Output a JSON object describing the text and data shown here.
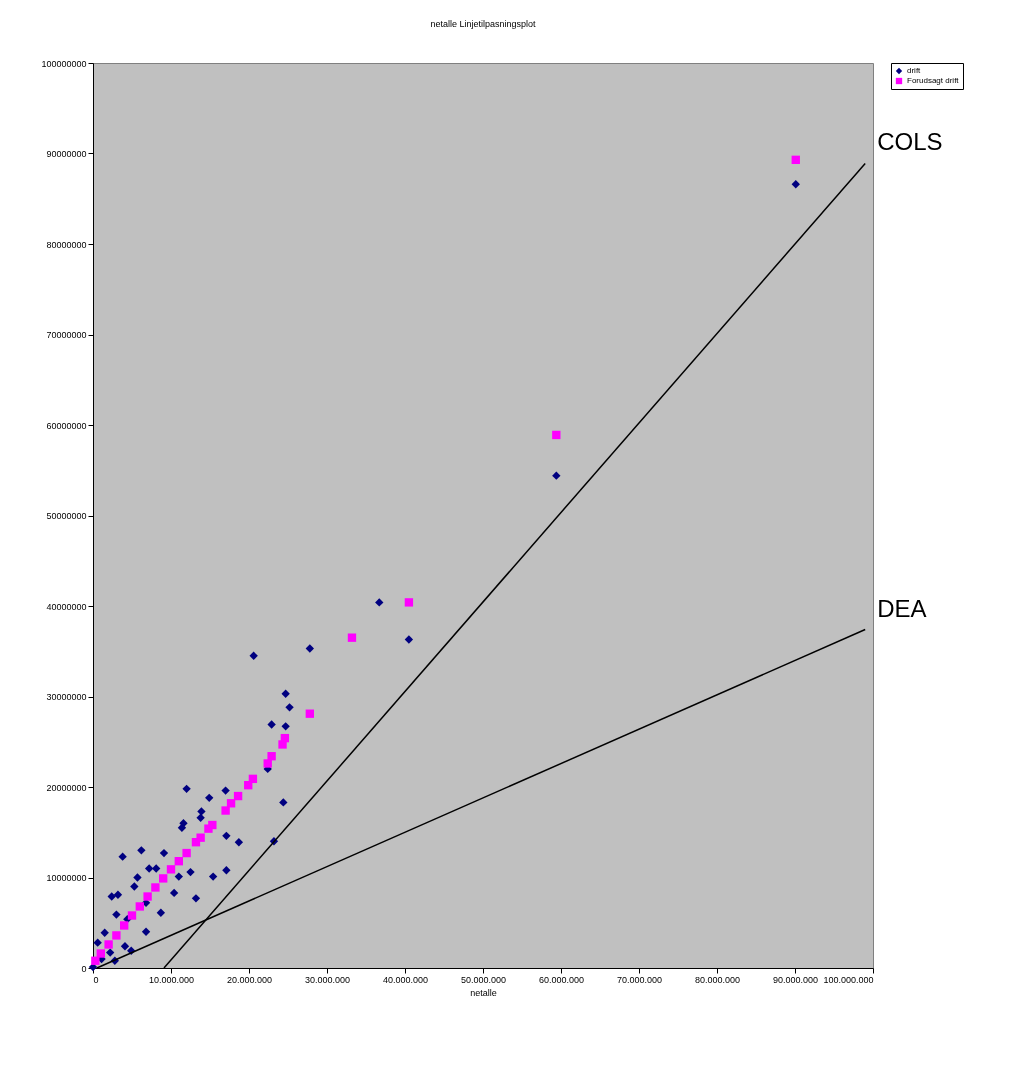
{
  "chart_data": {
    "type": "scatter",
    "title": "netalle Linjetilpasningsplot",
    "xlabel": "netalle",
    "xlim": [
      0,
      100000000.0
    ],
    "ylim": [
      0,
      100000000.0
    ],
    "xticks": [
      0,
      {
        "value": 10000000.0,
        "label": "10.000.000"
      },
      {
        "value": 20000000.0,
        "label": "20.000.000"
      },
      {
        "value": 30000000.0,
        "label": "30.000.000"
      },
      {
        "value": 40000000.0,
        "label": "40.000.000"
      },
      {
        "value": 50000000.0,
        "label": "50.000.000"
      },
      {
        "value": 60000000.0,
        "label": "60.000.000"
      },
      {
        "value": 70000000.0,
        "label": "70.000.000"
      },
      {
        "value": 80000000.0,
        "label": "80.000.000"
      },
      {
        "value": 90000000.0,
        "label": "90.000.000"
      },
      {
        "value": 100000000.0,
        "label": "100.000.000"
      }
    ],
    "yticks": [
      0,
      10000000,
      20000000,
      30000000,
      40000000,
      50000000,
      60000000,
      70000000,
      80000000,
      90000000,
      100000000
    ],
    "grid": false,
    "legend": "right",
    "series": [
      {
        "name": "drift",
        "color": "#000080",
        "marker": "diamond",
        "x": [
          90100000.0,
          59400000.0,
          36700000.0,
          40500000.0,
          20600000.0,
          27800000.0,
          24700000.0,
          25200000.0,
          22900000.0,
          24700000.0,
          22400000.0,
          24400000.0,
          23200000.0,
          17000000.0,
          14900000.0,
          13900000.0,
          13800000.0,
          12000000.0,
          17100000.0,
          18700000.0,
          11600000.0,
          17100000.0,
          15400000.0,
          12500000.0,
          6200000.0,
          3800000.0,
          11400000.0,
          9100000.0,
          7200000.0,
          8100000.0,
          11000000.0,
          13200000.0,
          10400000.0,
          8700000.0,
          3200000.0,
          2400000.0,
          5700000.0,
          5300000.0,
          6800000.0,
          3000000.0,
          4400000.0,
          6800000.0,
          3700000.0,
          1500000.0,
          4100000.0,
          4900000.0,
          2200000.0,
          600000.0,
          1100000.0,
          2800000.0,
          0
        ],
        "values": [
          86600000.0,
          54400000.0,
          40400000.0,
          36300000.0,
          34500000.0,
          35300000.0,
          30300000.0,
          28800000.0,
          26900000.0,
          26700000.0,
          22000000.0,
          18300000.0,
          14000000.0,
          19600000.0,
          18800000.0,
          17300000.0,
          16600000.0,
          19800000.0,
          14600000.0,
          13900000.0,
          16000000.0,
          10800000.0,
          10100000.0,
          10600000.0,
          13000000.0,
          12300000.0,
          15500000.0,
          12700000.0,
          11000000.0,
          11000000.0,
          10100000.0,
          7700000.0,
          8300000.0,
          6100000.0,
          8100000.0,
          7900000.0,
          10000000.0,
          9000000.0,
          7200000.0,
          5900000.0,
          5400000.0,
          4000000.0,
          null,
          3900000.0,
          2400000.0,
          1900000.0,
          1700000.0,
          2800000.0,
          1000000.0,
          800000.0,
          100000.0
        ]
      },
      {
        "name": "Forudsagt drift",
        "color": "#ff00ff",
        "marker": "square",
        "x": [
          90100000.0,
          59400000.0,
          40500000.0,
          33200000.0,
          27800000.0,
          24600000.0,
          24300000.0,
          22900000.0,
          22400000.0,
          20500000.0,
          19900000.0,
          18600000.0,
          17700000.0,
          17000000.0,
          15300000.0,
          14800000.0,
          13800000.0,
          13200000.0,
          12000000.0,
          11000000.0,
          10000000.0,
          9000000.0,
          8000000.0,
          7000000.0,
          6000000.0,
          5000000.0,
          4000000.0,
          3000000.0,
          2000000.0,
          1000000.0,
          300000.0
        ],
        "values": [
          89300000.0,
          58900000.0,
          40400000.0,
          36500000.0,
          28100000.0,
          25400000.0,
          24700000.0,
          23400000.0,
          22600000.0,
          20900000.0,
          20200000.0,
          19000000.0,
          18200000.0,
          17400000.0,
          15800000.0,
          15400000.0,
          14400000.0,
          13900000.0,
          12700000.0,
          11800000.0,
          10900000.0,
          9900000.0,
          8900000.0,
          7900000.0,
          6800000.0,
          5800000.0,
          4700000.0,
          3600000.0,
          2600000.0,
          1600000.0,
          800000.0
        ]
      },
      {
        "name": "COLS",
        "type": "line",
        "color": "#000000",
        "marker": "none",
        "x": [
          9100000.0,
          99000000.0
        ],
        "values": [
          0,
          88900000.0
        ]
      },
      {
        "name": "DEA",
        "type": "line",
        "color": "#000000",
        "marker": "none",
        "x": [
          500000.0,
          99000000.0
        ],
        "values": [
          0,
          37400000.0
        ]
      }
    ]
  }
}
